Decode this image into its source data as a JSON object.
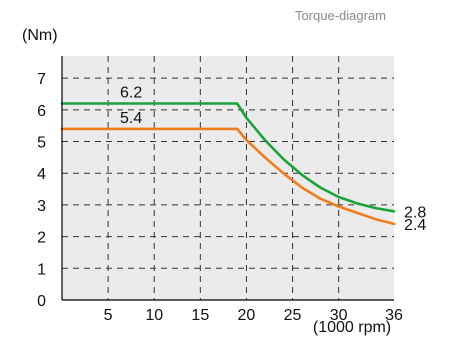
{
  "chart_data": {
    "type": "line",
    "title": "Torque-diagram",
    "ylabel": "(Nm)",
    "xlabel": "(1000 rpm)",
    "xlim": [
      0,
      36
    ],
    "ylim": [
      0,
      7.7
    ],
    "x_ticks": [
      5,
      10,
      15,
      20,
      25,
      30,
      36
    ],
    "y_ticks": [
      0,
      1,
      2,
      3,
      4,
      5,
      6,
      7
    ],
    "grid": true,
    "series": [
      {
        "color": "#1aa33a",
        "x": [
          0,
          19,
          20,
          22,
          24,
          26,
          28,
          30,
          32,
          34,
          36
        ],
        "y": [
          6.2,
          6.2,
          5.75,
          5.05,
          4.45,
          3.95,
          3.55,
          3.25,
          3.05,
          2.9,
          2.8
        ]
      },
      {
        "color": "#ee7d1a",
        "x": [
          0,
          19,
          20,
          22,
          24,
          26,
          28,
          30,
          32,
          34,
          36
        ],
        "y": [
          5.4,
          5.4,
          5.05,
          4.5,
          4.0,
          3.55,
          3.2,
          2.95,
          2.75,
          2.55,
          2.4
        ]
      }
    ],
    "annotations": [
      {
        "text": "6.2",
        "x": 7.5,
        "y": 6.2,
        "anchor": "above"
      },
      {
        "text": "5.4",
        "x": 7.5,
        "y": 5.4,
        "anchor": "above"
      },
      {
        "text": "2.8",
        "x": 36,
        "y": 2.8,
        "anchor": "right"
      },
      {
        "text": "2.4",
        "x": 36,
        "y": 2.4,
        "anchor": "right"
      }
    ]
  }
}
